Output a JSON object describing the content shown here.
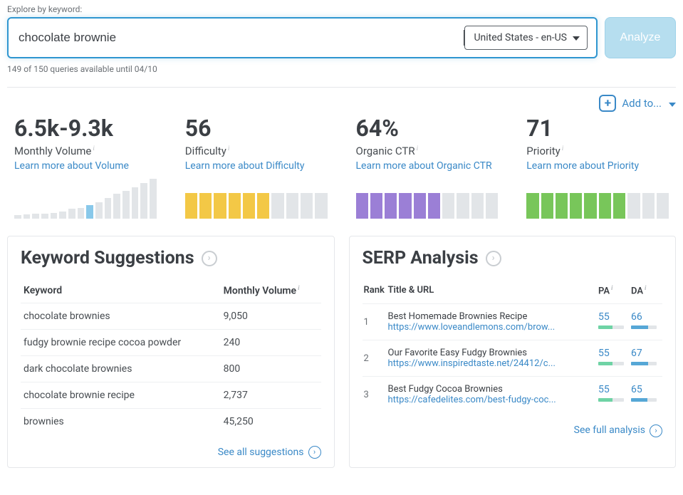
{
  "search": {
    "label": "Explore by keyword:",
    "value": "chocolate brownie",
    "locale": "United States - en-US",
    "analyze_label": "Analyze",
    "quota": "149 of 150 queries available until 04/10"
  },
  "addto": {
    "label": "Add to..."
  },
  "metrics": {
    "volume": {
      "value": "6.5k-9.3k",
      "label": "Monthly Volume",
      "learn": "Learn more about Volume",
      "bars": [
        5,
        6,
        7,
        7,
        8,
        10,
        14,
        16,
        20,
        24,
        30,
        36,
        40,
        46,
        52,
        58
      ]
    },
    "difficulty": {
      "value": "56",
      "label": "Difficulty",
      "learn": "Learn more about Difficulty",
      "filled": 6,
      "total": 10,
      "fill_color": "#f3c846"
    },
    "ctr": {
      "value": "64%",
      "label": "Organic CTR",
      "learn": "Learn more about Organic CTR",
      "filled": 6,
      "total": 10,
      "fill_color": "#9b7fd6"
    },
    "priority": {
      "value": "71",
      "label": "Priority",
      "learn": "Learn more about Priority",
      "filled": 7,
      "total": 10,
      "fill_color": "#78c65a"
    }
  },
  "suggestions": {
    "title": "Keyword Suggestions",
    "col_keyword": "Keyword",
    "col_volume": "Monthly Volume",
    "see_all": "See all suggestions",
    "rows": [
      {
        "kw": "chocolate brownies",
        "vol": "9,050"
      },
      {
        "kw": "fudgy brownie recipe cocoa powder",
        "vol": "240"
      },
      {
        "kw": "dark chocolate brownies",
        "vol": "800"
      },
      {
        "kw": "chocolate brownie recipe",
        "vol": "2,737"
      },
      {
        "kw": "brownies",
        "vol": "45,250"
      }
    ]
  },
  "serp": {
    "title": "SERP Analysis",
    "col_rank": "Rank",
    "col_title": "Title & URL",
    "col_pa": "PA",
    "col_da": "DA",
    "see_full": "See full analysis",
    "rows": [
      {
        "rank": "1",
        "title": "Best Homemade Brownies Recipe",
        "url": "https://www.loveandlemons.com/brow...",
        "pa": "55",
        "pa_pct": 55,
        "pa_color": "#6fd3a5",
        "da": "66",
        "da_pct": 66,
        "da_color": "#56a7d6"
      },
      {
        "rank": "2",
        "title": "Our Favorite Easy Fudgy Brownies",
        "url": "https://www.inspiredtaste.net/24412/c...",
        "pa": "55",
        "pa_pct": 55,
        "pa_color": "#6fd3a5",
        "da": "67",
        "da_pct": 67,
        "da_color": "#56a7d6"
      },
      {
        "rank": "3",
        "title": "Best Fudgy Cocoa Brownies",
        "url": "https://cafedelites.com/best-fudgy-coc...",
        "pa": "55",
        "pa_pct": 55,
        "pa_color": "#6fd3a5",
        "da": "65",
        "da_pct": 65,
        "da_color": "#56a7d6"
      }
    ]
  },
  "colors": {
    "brand_blue": "#3a89c7",
    "vol_highlight": "#88c8ea",
    "seg_grey": "#e2e5e8"
  }
}
